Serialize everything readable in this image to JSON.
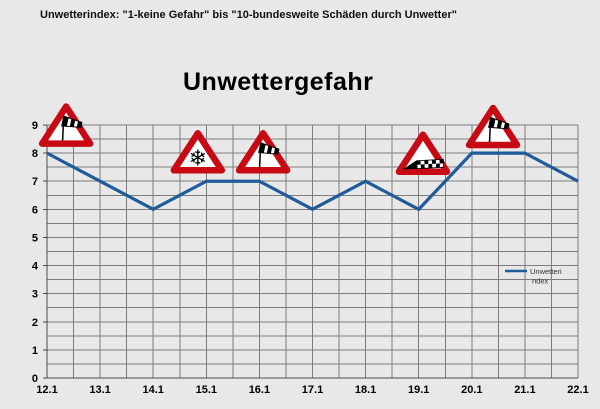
{
  "page": {
    "background": "#E8E8E8"
  },
  "header": {
    "note": "Unwetterindex: \"1-keine Gefahr\" bis \"10-bundesweite Schäden durch Unwetter\""
  },
  "chart_data": {
    "type": "line",
    "title": "Unwettergefahr",
    "categories": [
      "12.1",
      "13.1",
      "14.1",
      "15.1",
      "16.1",
      "17.1",
      "18.1",
      "19.1",
      "20.1",
      "21.1",
      "22.1"
    ],
    "series": [
      {
        "name": "Unwetterindex",
        "values": [
          8,
          7,
          6,
          7,
          7,
          6,
          7,
          6,
          8,
          8,
          7
        ],
        "color": "#1F5C99"
      }
    ],
    "ylim": [
      0,
      9
    ],
    "ytick_step": 1,
    "grid_step": 0.5,
    "grid": true,
    "markers": false,
    "legend": {
      "position": "inside-right",
      "label": "Unwetterindex",
      "lines": [
        "Unwetteri",
        "ndex"
      ]
    },
    "annotations": [
      {
        "icon": "crosswind-sign-icon",
        "kind": "crosswind",
        "desc": "red warning triangle with windsock",
        "xi": 0.36,
        "yv": 9.05
      },
      {
        "icon": "snow-sign-icon",
        "kind": "snow",
        "desc": "red warning triangle with snowflake",
        "glyph": "❄",
        "xi": 2.84,
        "yv": 8.1
      },
      {
        "icon": "crosswind-sign-icon",
        "kind": "crosswind",
        "desc": "red warning triangle with windsock",
        "xi": 4.07,
        "yv": 8.1
      },
      {
        "icon": "snowdrift-sign-icon",
        "kind": "snowdrift",
        "desc": "red warning triangle with black snowdrift band",
        "xi": 7.08,
        "yv": 8.05
      },
      {
        "icon": "crosswind-sign-icon",
        "kind": "crosswind",
        "desc": "red warning triangle with windsock",
        "xi": 8.4,
        "yv": 9.0
      }
    ],
    "colors": {
      "line": "#1F5C99",
      "grid": "#7D7D7D",
      "axis": "#4D4D4D",
      "sign_red": "#C80A14",
      "sign_fill": "#FFFFFF",
      "text": "#000000"
    }
  }
}
